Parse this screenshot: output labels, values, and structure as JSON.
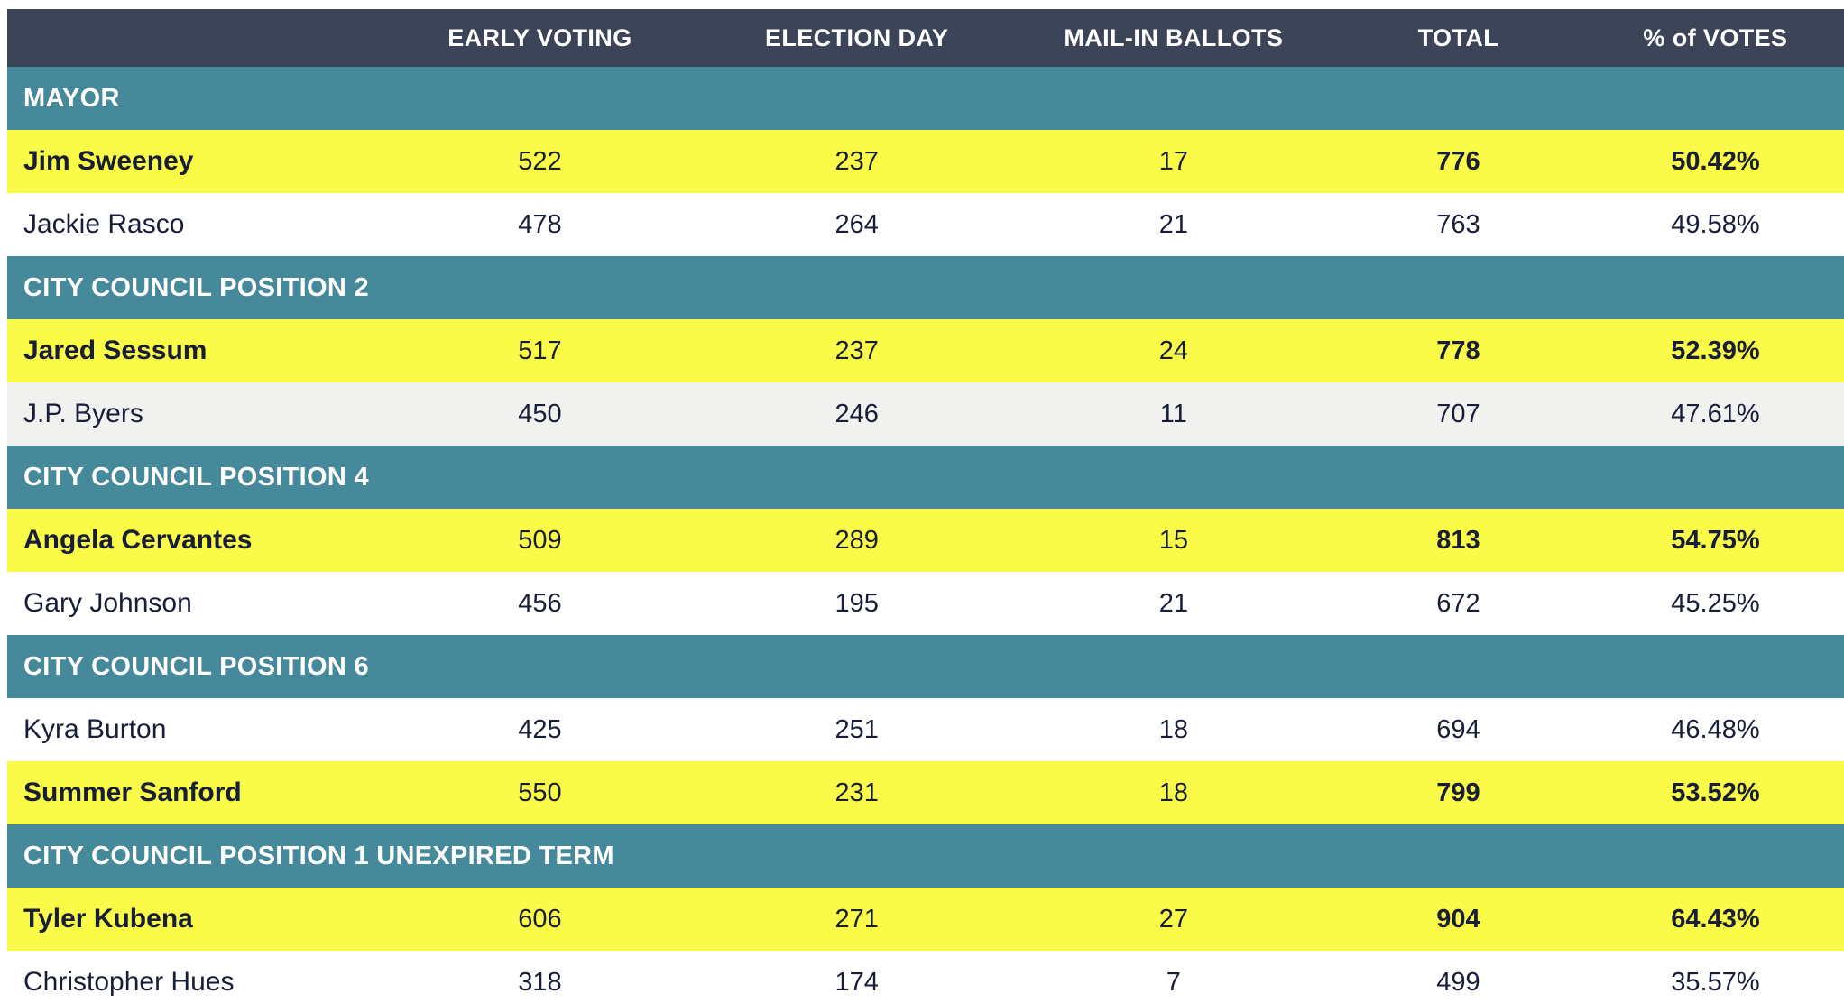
{
  "colors": {
    "header_navy": "#3c4457",
    "section_teal": "#46899a",
    "winner_yellow": "#fafb48",
    "shaded_gray": "#f1f1ef",
    "text_navy": "#181d38"
  },
  "chart_data": {
    "type": "table",
    "columns": [
      "",
      "EARLY VOTING",
      "ELECTION DAY",
      "MAIL-IN BALLOTS",
      "TOTAL",
      "% of VOTES"
    ],
    "layout_hints": {
      "winner_rows_highlighted_yellow": true,
      "bold_columns_on_winner_rows": [
        "name",
        "total",
        "percent_of_votes"
      ]
    },
    "sections": [
      {
        "title": "MAYOR",
        "rows": [
          {
            "name": "Jim Sweeney",
            "early_voting": 522,
            "election_day": 237,
            "mail_in_ballots": 17,
            "total": 776,
            "percent_of_votes": "50.42%",
            "winner": true,
            "shaded": false
          },
          {
            "name": "Jackie Rasco",
            "early_voting": 478,
            "election_day": 264,
            "mail_in_ballots": 21,
            "total": 763,
            "percent_of_votes": "49.58%",
            "winner": false,
            "shaded": false
          }
        ]
      },
      {
        "title": "CITY COUNCIL POSITION 2",
        "rows": [
          {
            "name": "Jared Sessum",
            "early_voting": 517,
            "election_day": 237,
            "mail_in_ballots": 24,
            "total": 778,
            "percent_of_votes": "52.39%",
            "winner": true,
            "shaded": false
          },
          {
            "name": "J.P. Byers",
            "early_voting": 450,
            "election_day": 246,
            "mail_in_ballots": 11,
            "total": 707,
            "percent_of_votes": "47.61%",
            "winner": false,
            "shaded": true
          }
        ]
      },
      {
        "title": "CITY COUNCIL POSITION 4",
        "rows": [
          {
            "name": "Angela Cervantes",
            "early_voting": 509,
            "election_day": 289,
            "mail_in_ballots": 15,
            "total": 813,
            "percent_of_votes": "54.75%",
            "winner": true,
            "shaded": false
          },
          {
            "name": "Gary Johnson",
            "early_voting": 456,
            "election_day": 195,
            "mail_in_ballots": 21,
            "total": 672,
            "percent_of_votes": "45.25%",
            "winner": false,
            "shaded": false
          }
        ]
      },
      {
        "title": "CITY COUNCIL POSITION 6",
        "rows": [
          {
            "name": "Kyra Burton",
            "early_voting": 425,
            "election_day": 251,
            "mail_in_ballots": 18,
            "total": 694,
            "percent_of_votes": "46.48%",
            "winner": false,
            "shaded": false
          },
          {
            "name": "Summer Sanford",
            "early_voting": 550,
            "election_day": 231,
            "mail_in_ballots": 18,
            "total": 799,
            "percent_of_votes": "53.52%",
            "winner": true,
            "shaded": false
          }
        ]
      },
      {
        "title": "CITY COUNCIL POSITION 1 UNEXPIRED TERM",
        "rows": [
          {
            "name": "Tyler Kubena",
            "early_voting": 606,
            "election_day": 271,
            "mail_in_ballots": 27,
            "total": 904,
            "percent_of_votes": "64.43%",
            "winner": true,
            "shaded": false
          },
          {
            "name": "Christopher Hues",
            "early_voting": 318,
            "election_day": 174,
            "mail_in_ballots": 7,
            "total": 499,
            "percent_of_votes": "35.57%",
            "winner": false,
            "shaded": false
          }
        ]
      }
    ]
  }
}
